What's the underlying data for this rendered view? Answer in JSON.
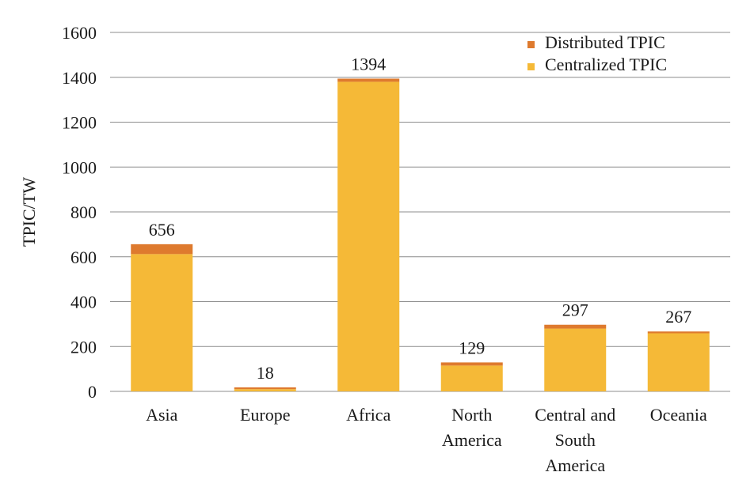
{
  "chart_data": {
    "type": "bar",
    "stacked": true,
    "ylabel": "TPIC/TW",
    "xlabel": "",
    "ylim": [
      0,
      1600
    ],
    "yticks": [
      0,
      200,
      400,
      600,
      800,
      1000,
      1200,
      1400,
      1600
    ],
    "grid": true,
    "legend_position": "top-right",
    "categories": [
      [
        "Asia"
      ],
      [
        "Europe"
      ],
      [
        "Africa"
      ],
      [
        "North",
        "America"
      ],
      [
        "Central and",
        "South",
        "America"
      ],
      [
        "Oceania"
      ]
    ],
    "series": [
      {
        "name": "Distributed TPIC",
        "color": "#DE7A2E",
        "values": [
          44,
          8,
          14,
          14,
          17,
          8
        ]
      },
      {
        "name": "Centralized TPIC",
        "color": "#F5B937",
        "values": [
          612,
          10,
          1380,
          115,
          280,
          259
        ]
      }
    ],
    "totals": [
      656,
      18,
      1394,
      129,
      297,
      267
    ],
    "total_labels": [
      "656",
      "18",
      "1394",
      "129",
      "297",
      "267"
    ]
  }
}
